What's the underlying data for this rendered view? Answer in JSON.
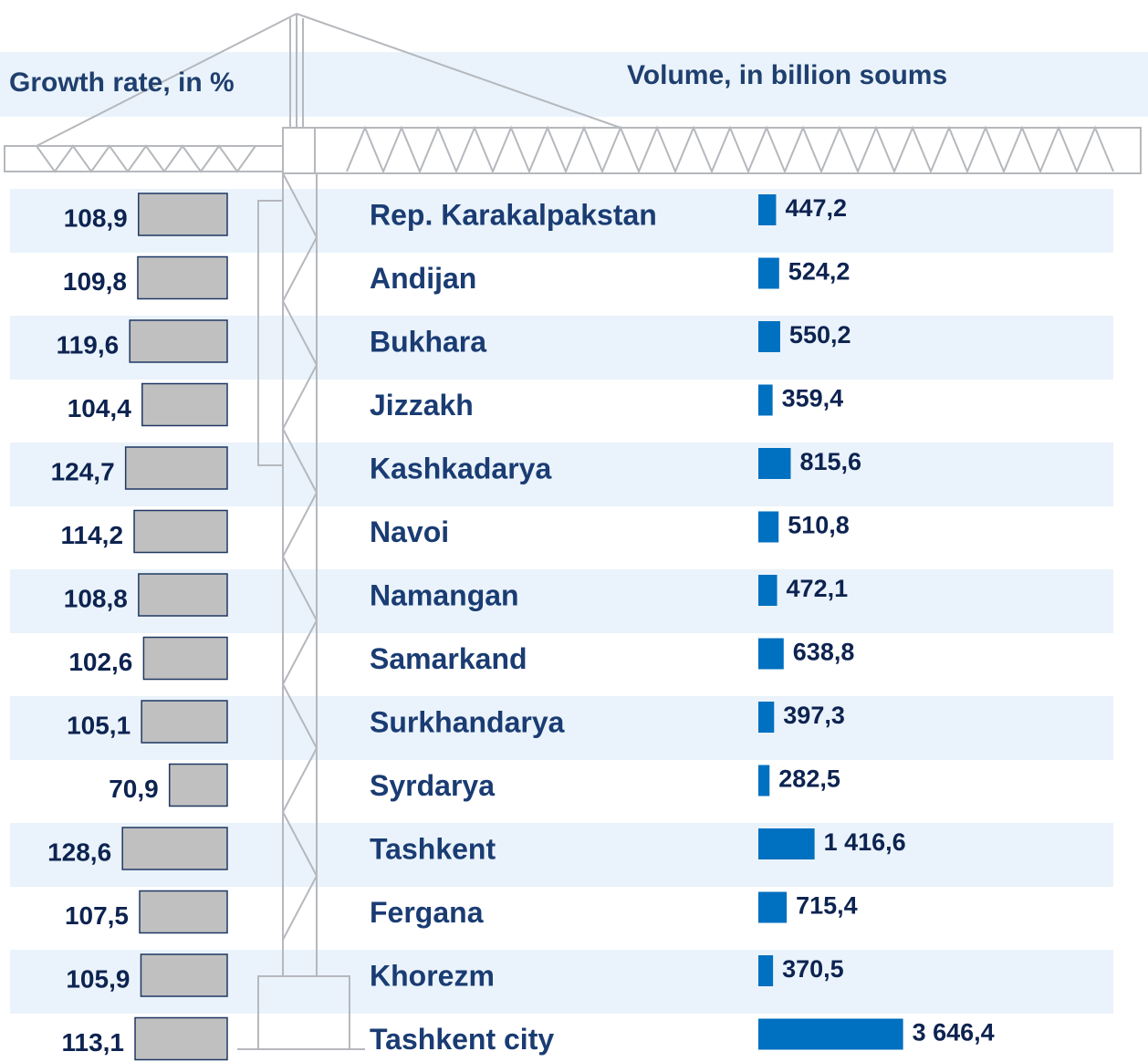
{
  "chart_data": {
    "type": "bar",
    "orientation": "horizontal",
    "categories": [
      "Rep. Karakalpakstan",
      "Andijan",
      "Bukhara",
      "Jizzakh",
      "Kashkadarya",
      "Navoi",
      "Namangan",
      "Samarkand",
      "Surkhandarya",
      "Syrdarya",
      "Tashkent",
      "Fergana",
      "Khorezm",
      "Tashkent city"
    ],
    "series": [
      {
        "name": "Growth rate, in %",
        "color": "#c0c0c0",
        "xlim": [
          0,
          140
        ],
        "values": [
          108.9,
          109.8,
          119.6,
          104.4,
          124.7,
          114.2,
          108.8,
          102.6,
          105.1,
          70.9,
          128.6,
          107.5,
          105.9,
          113.1
        ],
        "value_labels": [
          "108,9",
          "109,8",
          "119,6",
          "104,4",
          "124,7",
          "114,2",
          "108,8",
          "102,6",
          "105,1",
          "70,9",
          "128,6",
          "107,5",
          "105,9",
          "113,1"
        ]
      },
      {
        "name": "Volume, in billion soums",
        "color": "#0070c0",
        "xlim": [
          0,
          4000
        ],
        "values": [
          447.2,
          524.2,
          550.2,
          359.4,
          815.6,
          510.8,
          472.1,
          638.8,
          397.3,
          282.5,
          1416.6,
          715.4,
          370.5,
          3646.4
        ],
        "value_labels": [
          "447,2",
          "524,2",
          "550,2",
          "359,4",
          "815,6",
          "510,8",
          "472,1",
          "638,8",
          "397,3",
          "282,5",
          "1 416,6",
          "715,4",
          "370,5",
          "3 646,4"
        ]
      }
    ]
  }
}
